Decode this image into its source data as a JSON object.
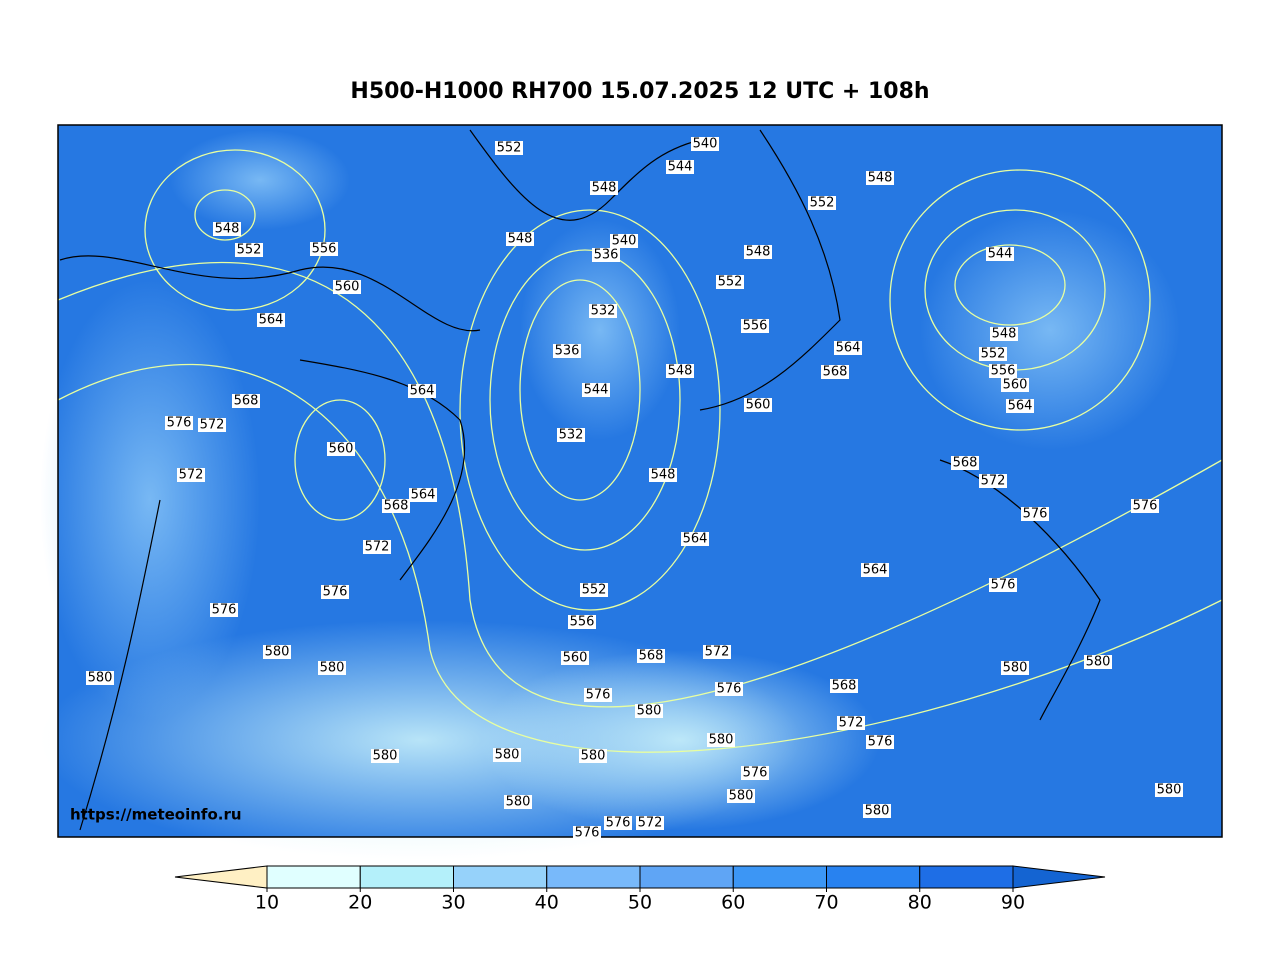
{
  "title": "H500-H1000 RH700 15.07.2025 12 UTC + 108h",
  "url": "https://meteoinfo.ru",
  "contour_labels": [
    "548",
    "552",
    "556",
    "560",
    "564",
    "568",
    "576",
    "572",
    "572",
    "560",
    "564",
    "568",
    "564",
    "572",
    "576",
    "576",
    "580",
    "580",
    "580",
    "580",
    "580",
    "580",
    "580",
    "552",
    "548",
    "548",
    "540",
    "536",
    "532",
    "536",
    "544",
    "532",
    "548",
    "548",
    "544",
    "540",
    "552",
    "548",
    "552",
    "556",
    "560",
    "564",
    "568",
    "544",
    "548",
    "548",
    "552",
    "556",
    "560",
    "564",
    "568",
    "572",
    "576",
    "576",
    "576",
    "564",
    "564",
    "552",
    "556",
    "560",
    "568",
    "572",
    "576",
    "576",
    "580",
    "568",
    "572",
    "576",
    "580",
    "576",
    "580",
    "580",
    "580",
    "580",
    "580",
    "576",
    "572",
    "576"
  ],
  "colorbar": {
    "ticks": [
      10,
      20,
      30,
      40,
      50,
      60,
      70,
      80,
      90
    ],
    "colors": [
      "#fff0c4",
      "#e0ffff",
      "#b4f0fa",
      "#96d2fa",
      "#78b9fa",
      "#5fa5f5",
      "#3c96f5",
      "#2882f0",
      "#1e6ee6",
      "#1464d2"
    ]
  }
}
